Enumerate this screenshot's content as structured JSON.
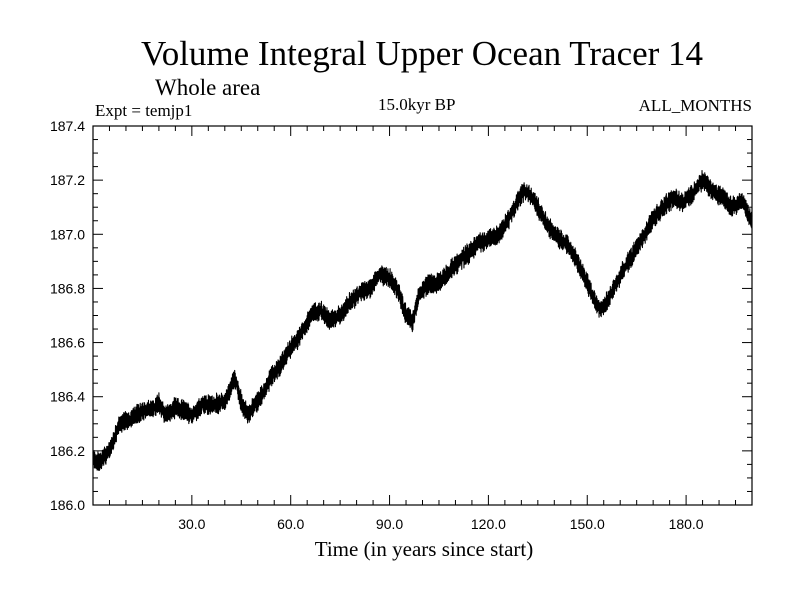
{
  "chart_data": {
    "type": "line",
    "title": "Volume Integral Upper Ocean Tracer 14",
    "subtitle": "Whole area",
    "annotations": {
      "left": "Expt = temjp1",
      "center": "15.0kyr BP",
      "right": "ALL_MONTHS"
    },
    "xlabel": "Time (in years since start)",
    "ylabel": "",
    "xlim": [
      0,
      200
    ],
    "ylim": [
      186.0,
      187.4
    ],
    "x_ticks": [
      30,
      60,
      90,
      120,
      150,
      180
    ],
    "x_tick_labels": [
      "30.0",
      "60.0",
      "90.0",
      "120.0",
      "150.0",
      "180.0"
    ],
    "y_ticks": [
      186.0,
      186.2,
      186.4,
      186.6,
      186.8,
      187.0,
      187.2,
      187.4
    ],
    "y_tick_labels": [
      "186.0",
      "186.2",
      "186.4",
      "186.6",
      "186.8",
      "187.0",
      "187.2",
      "187.4"
    ],
    "noise_amplitude": 0.035,
    "series": [
      {
        "name": "Tracer 14",
        "x": [
          0,
          2,
          5,
          8,
          12,
          15,
          18,
          20,
          22,
          25,
          28,
          30,
          33,
          36,
          40,
          42,
          43,
          45,
          47,
          49,
          51,
          54,
          57,
          60,
          63,
          66,
          69,
          72,
          75,
          78,
          81,
          84,
          87,
          90,
          93,
          95,
          97,
          99,
          102,
          105,
          108,
          111,
          114,
          117,
          120,
          123,
          126,
          129,
          131,
          133,
          135,
          138,
          141,
          144,
          147,
          150,
          152,
          154,
          156,
          158,
          161,
          164,
          167,
          170,
          173,
          176,
          179,
          182,
          185,
          188,
          191,
          194,
          197,
          200
        ],
        "values": [
          186.17,
          186.16,
          186.2,
          186.3,
          186.32,
          186.35,
          186.35,
          186.38,
          186.33,
          186.36,
          186.35,
          186.33,
          186.37,
          186.37,
          186.38,
          186.44,
          186.47,
          186.38,
          186.33,
          186.37,
          186.4,
          186.47,
          186.52,
          186.58,
          186.63,
          186.7,
          186.72,
          186.68,
          186.7,
          186.75,
          186.78,
          186.8,
          186.85,
          186.84,
          186.78,
          186.7,
          186.68,
          186.78,
          186.82,
          186.82,
          186.86,
          186.9,
          186.93,
          186.97,
          186.98,
          187.0,
          187.05,
          187.13,
          187.16,
          187.14,
          187.1,
          187.03,
          186.99,
          186.96,
          186.9,
          186.82,
          186.76,
          186.72,
          186.75,
          186.8,
          186.87,
          186.93,
          186.99,
          187.06,
          187.1,
          187.13,
          187.12,
          187.15,
          187.2,
          187.16,
          187.14,
          187.1,
          187.12,
          187.05
        ]
      }
    ]
  }
}
